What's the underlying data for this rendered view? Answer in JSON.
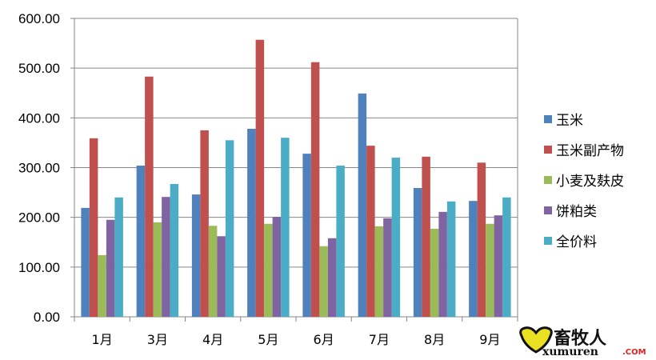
{
  "chart_data": {
    "type": "bar",
    "title": "",
    "xlabel": "",
    "ylabel": "",
    "ylim": [
      0,
      600
    ],
    "yticks": [
      "0.00",
      "100.00",
      "200.00",
      "300.00",
      "400.00",
      "500.00",
      "600.00"
    ],
    "grid": true,
    "legend_position": "right",
    "categories": [
      "1月",
      "3月",
      "4月",
      "5月",
      "6月",
      "7月",
      "8月",
      "9月"
    ],
    "series": [
      {
        "name": "玉米",
        "color": "#4F81BD",
        "values": [
          219,
          304,
          246,
          378,
          328,
          449,
          259,
          233
        ]
      },
      {
        "name": "玉米副产物",
        "color": "#C0504D",
        "values": [
          359,
          483,
          375,
          557,
          512,
          344,
          322,
          310
        ]
      },
      {
        "name": "小麦及麸皮",
        "color": "#9BBB59",
        "values": [
          124,
          190,
          183,
          187,
          142,
          182,
          177,
          187
        ]
      },
      {
        "name": "饼粕类",
        "color": "#8064A2",
        "values": [
          195,
          241,
          162,
          201,
          158,
          198,
          211,
          204
        ]
      },
      {
        "name": "全价料",
        "color": "#4BACC6",
        "values": [
          240,
          267,
          355,
          360,
          304,
          320,
          232,
          240
        ]
      }
    ]
  },
  "watermark": {
    "cn": "畜牧人",
    "en": "xumuren",
    "com": ".COM"
  }
}
